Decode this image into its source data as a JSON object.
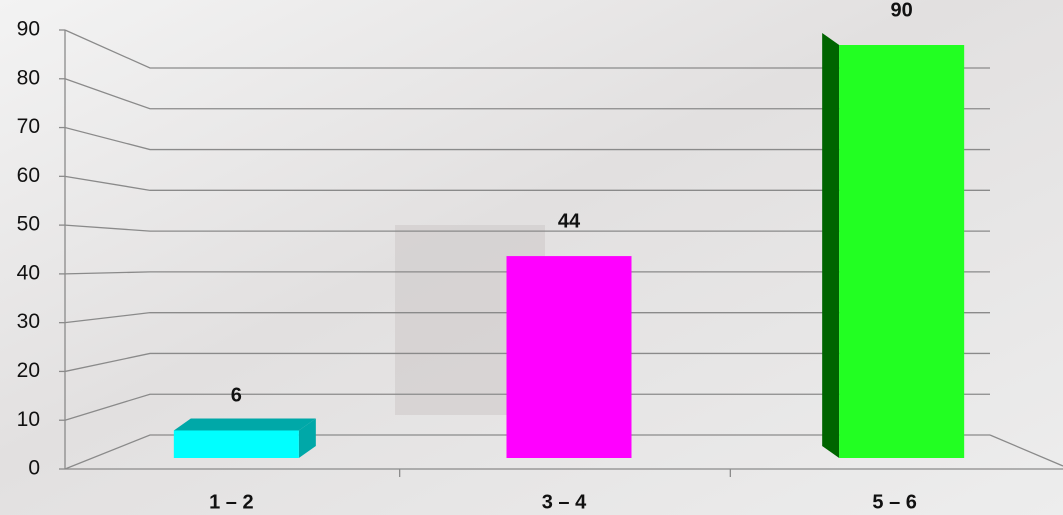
{
  "chart_data": {
    "type": "bar",
    "categories": [
      "1 – 2",
      "3 – 4",
      "5 – 6"
    ],
    "values": [
      6,
      44,
      90
    ],
    "colors": [
      "#00ffff",
      "#ff00ff",
      "#22ff22"
    ],
    "side_colors": [
      "#00a8a8",
      "#a000a0",
      "#006400"
    ],
    "ylim": [
      0,
      90
    ],
    "yticks": [
      0,
      10,
      20,
      30,
      40,
      50,
      60,
      70,
      80,
      90
    ],
    "grid": true
  }
}
